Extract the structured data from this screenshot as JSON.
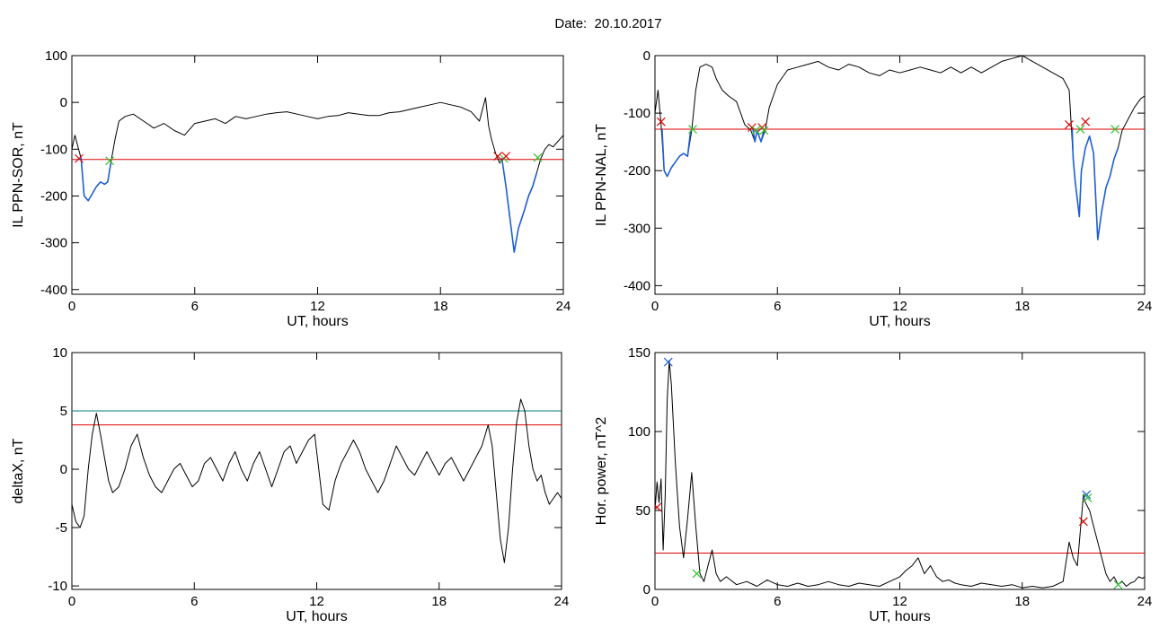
{
  "page": {
    "title": "Date:  20.10.2017"
  },
  "chart_data": [
    {
      "id": "ppn-sor",
      "type": "line",
      "title": "",
      "xlabel": "UT, hours",
      "ylabel": "IL PPN-SOR, nT",
      "xlim": [
        0,
        24
      ],
      "ylim": [
        -410,
        100
      ],
      "xticks": [
        0,
        6,
        12,
        18,
        24
      ],
      "yticks": [
        100,
        0,
        -100,
        -200,
        -300,
        -400
      ],
      "grid": false,
      "colors": {
        "line": "#000000",
        "highlight": "#1f5fd6",
        "threshold": "#e00000",
        "cross_red": "#e00000",
        "cross_green": "#2fc42f"
      },
      "threshold": -122,
      "series": [
        {
          "role": "main",
          "x": [
            0,
            0.15,
            0.3,
            0.45,
            0.6,
            0.8,
            1.0,
            1.2,
            1.4,
            1.6,
            1.75,
            1.9,
            2.1,
            2.3,
            2.6,
            3.0,
            3.5,
            4.0,
            4.5,
            5.0,
            5.5,
            6.0,
            6.5,
            7.0,
            7.5,
            8.0,
            8.5,
            9.0,
            9.5,
            10.0,
            10.5,
            11.0,
            11.5,
            12.0,
            12.5,
            13.0,
            13.5,
            14.0,
            14.5,
            15.0,
            15.5,
            16.0,
            16.5,
            17.0,
            17.5,
            18.0,
            18.5,
            19.0,
            19.5,
            19.9,
            20.2,
            20.35,
            20.5,
            20.7,
            20.9,
            21.0,
            21.2,
            21.4,
            21.6,
            21.8,
            21.95,
            22.1,
            22.3,
            22.5,
            22.7,
            22.9,
            23.1,
            23.3,
            23.5,
            23.7,
            23.9,
            24.0
          ],
          "y": [
            -100,
            -70,
            -95,
            -120,
            -200,
            -210,
            -195,
            -180,
            -170,
            -175,
            -170,
            -130,
            -80,
            -40,
            -30,
            -25,
            -40,
            -55,
            -45,
            -60,
            -70,
            -45,
            -40,
            -35,
            -45,
            -30,
            -35,
            -30,
            -25,
            -22,
            -20,
            -25,
            -30,
            -35,
            -30,
            -28,
            -22,
            -25,
            -28,
            -28,
            -22,
            -20,
            -15,
            -10,
            -5,
            0,
            -5,
            -10,
            -20,
            -40,
            10,
            -50,
            -80,
            -110,
            -130,
            -120,
            -180,
            -250,
            -320,
            -270,
            -250,
            -230,
            -200,
            -180,
            -150,
            -120,
            -100,
            -90,
            -95,
            -85,
            -75,
            -70
          ]
        },
        {
          "role": "below-threshold",
          "x": [
            0.3,
            0.45,
            0.6,
            0.8,
            1.0,
            1.2,
            1.4,
            1.6,
            1.75,
            1.9
          ],
          "y": [
            -122,
            -120,
            -200,
            -210,
            -195,
            -180,
            -170,
            -175,
            -170,
            -130
          ]
        },
        {
          "role": "below-threshold",
          "x": [
            20.95,
            21.0,
            21.2,
            21.4,
            21.6,
            21.8,
            21.95,
            22.1,
            22.3,
            22.5,
            22.7
          ],
          "y": [
            -125,
            -120,
            -180,
            -250,
            -320,
            -270,
            -250,
            -230,
            -200,
            -180,
            -150
          ]
        }
      ],
      "markers": [
        {
          "x": 0.35,
          "y": -120,
          "color": "red"
        },
        {
          "x": 1.85,
          "y": -125,
          "color": "green"
        },
        {
          "x": 20.8,
          "y": -115,
          "color": "red"
        },
        {
          "x": 21.1,
          "y": -120,
          "color": "green"
        },
        {
          "x": 21.2,
          "y": -115,
          "color": "red"
        },
        {
          "x": 22.75,
          "y": -118,
          "color": "green"
        }
      ]
    },
    {
      "id": "ppn-nal",
      "type": "line",
      "title": "",
      "xlabel": "UT, hours",
      "ylabel": "IL PPN-NAL, nT",
      "xlim": [
        0,
        24
      ],
      "ylim": [
        -415,
        0
      ],
      "xticks": [
        0,
        6,
        12,
        18,
        24
      ],
      "yticks": [
        0,
        -100,
        -200,
        -300,
        -400
      ],
      "grid": false,
      "colors": {
        "line": "#000000",
        "highlight": "#1f5fd6",
        "threshold": "#e00000",
        "cross_red": "#e00000",
        "cross_green": "#2fc42f"
      },
      "threshold": -128,
      "series": [
        {
          "role": "main",
          "x": [
            0,
            0.15,
            0.3,
            0.45,
            0.6,
            0.8,
            1.0,
            1.2,
            1.4,
            1.6,
            1.8,
            2.0,
            2.2,
            2.5,
            2.8,
            3.0,
            3.3,
            3.6,
            4.0,
            4.4,
            4.7,
            4.9,
            5.0,
            5.2,
            5.4,
            5.6,
            6.0,
            6.5,
            7.0,
            7.5,
            8.0,
            8.5,
            9.0,
            9.5,
            10.0,
            10.5,
            11.0,
            11.5,
            12.0,
            12.5,
            13.0,
            13.5,
            14.0,
            14.5,
            15.0,
            15.5,
            16.0,
            16.5,
            17.0,
            17.5,
            18.0,
            18.5,
            19.0,
            19.5,
            20.0,
            20.3,
            20.5,
            20.6,
            20.8,
            20.9,
            21.1,
            21.3,
            21.5,
            21.7,
            21.9,
            22.1,
            22.3,
            22.5,
            22.7,
            22.9,
            23.2,
            23.5,
            23.8,
            24.0
          ],
          "y": [
            -100,
            -60,
            -120,
            -200,
            -210,
            -195,
            -185,
            -175,
            -170,
            -175,
            -130,
            -60,
            -20,
            -15,
            -20,
            -40,
            -60,
            -70,
            -80,
            -120,
            -130,
            -150,
            -130,
            -150,
            -130,
            -90,
            -50,
            -25,
            -20,
            -15,
            -10,
            -20,
            -25,
            -15,
            -20,
            -30,
            -35,
            -25,
            -30,
            -25,
            -20,
            -25,
            -30,
            -20,
            -30,
            -20,
            -30,
            -20,
            -10,
            -5,
            0,
            -10,
            -20,
            -30,
            -40,
            -60,
            -180,
            -220,
            -280,
            -200,
            -160,
            -140,
            -170,
            -320,
            -270,
            -230,
            -210,
            -180,
            -160,
            -130,
            -110,
            -90,
            -75,
            -70
          ]
        },
        {
          "role": "below-threshold",
          "x": [
            0.35,
            0.45,
            0.6,
            0.8,
            1.0,
            1.2,
            1.4,
            1.6,
            1.75
          ],
          "y": [
            -128,
            -200,
            -210,
            -195,
            -185,
            -175,
            -170,
            -175,
            -130
          ]
        },
        {
          "role": "below-threshold",
          "x": [
            4.8,
            4.9,
            5.0,
            5.2,
            5.35
          ],
          "y": [
            -128,
            -150,
            -130,
            -150,
            -128
          ]
        },
        {
          "role": "below-threshold",
          "x": [
            20.45,
            20.5,
            20.6,
            20.8,
            20.9,
            21.1,
            21.3,
            21.5,
            21.7,
            21.9,
            22.1,
            22.3,
            22.5,
            22.7
          ],
          "y": [
            -128,
            -180,
            -220,
            -280,
            -200,
            -160,
            -140,
            -170,
            -320,
            -270,
            -230,
            -210,
            -180,
            -160
          ]
        }
      ],
      "markers": [
        {
          "x": 0.3,
          "y": -115,
          "color": "red"
        },
        {
          "x": 1.85,
          "y": -128,
          "color": "green"
        },
        {
          "x": 4.75,
          "y": -125,
          "color": "red"
        },
        {
          "x": 4.95,
          "y": -130,
          "color": "green"
        },
        {
          "x": 5.25,
          "y": -125,
          "color": "red"
        },
        {
          "x": 5.35,
          "y": -130,
          "color": "green"
        },
        {
          "x": 20.3,
          "y": -120,
          "color": "red"
        },
        {
          "x": 20.85,
          "y": -128,
          "color": "green"
        },
        {
          "x": 21.1,
          "y": -115,
          "color": "red"
        },
        {
          "x": 22.55,
          "y": -128,
          "color": "green"
        }
      ]
    },
    {
      "id": "deltax",
      "type": "line",
      "title": "",
      "xlabel": "UT, hours",
      "ylabel": "deltaX, nT",
      "xlim": [
        0,
        24
      ],
      "ylim": [
        -10.3,
        10
      ],
      "xticks": [
        0,
        6,
        12,
        18,
        24
      ],
      "yticks": [
        10,
        5,
        0,
        -5,
        -10
      ],
      "grid": false,
      "colors": {
        "line": "#000000",
        "threshold": "#e00000",
        "threshold2": "#008080"
      },
      "threshold": 3.8,
      "threshold2": 5.0,
      "series": [
        {
          "role": "main",
          "x": [
            0,
            0.2,
            0.4,
            0.6,
            0.8,
            1.0,
            1.2,
            1.4,
            1.6,
            1.8,
            2.0,
            2.3,
            2.6,
            2.9,
            3.2,
            3.5,
            3.8,
            4.1,
            4.4,
            4.7,
            5.0,
            5.3,
            5.6,
            5.9,
            6.2,
            6.5,
            6.8,
            7.1,
            7.4,
            7.7,
            8.0,
            8.3,
            8.6,
            8.9,
            9.2,
            9.5,
            9.8,
            10.1,
            10.4,
            10.7,
            11.0,
            11.3,
            11.6,
            11.9,
            12.1,
            12.3,
            12.6,
            12.9,
            13.2,
            13.5,
            13.8,
            14.1,
            14.4,
            14.7,
            15.0,
            15.3,
            15.6,
            15.9,
            16.2,
            16.5,
            16.8,
            17.1,
            17.4,
            17.7,
            18.0,
            18.3,
            18.6,
            18.9,
            19.2,
            19.5,
            19.8,
            20.1,
            20.4,
            20.6,
            20.8,
            21.0,
            21.2,
            21.4,
            21.6,
            21.8,
            22.0,
            22.2,
            22.4,
            22.6,
            22.8,
            23.0,
            23.2,
            23.4,
            23.6,
            23.8,
            24.0
          ],
          "y": [
            -3,
            -4.5,
            -5,
            -4,
            0,
            3,
            4.8,
            3,
            1,
            -1,
            -2,
            -1.5,
            0,
            2,
            3,
            1,
            -0.5,
            -1.5,
            -2,
            -1,
            0,
            0.5,
            -0.5,
            -1.5,
            -1,
            0.5,
            1,
            0,
            -1,
            0.5,
            1.5,
            0,
            -1,
            0.5,
            1.5,
            0,
            -1.5,
            0,
            1.5,
            2,
            0.5,
            1.5,
            2.5,
            3,
            0,
            -3,
            -3.5,
            -1,
            0.5,
            1.5,
            2.5,
            1.5,
            0,
            -1,
            -2,
            -1,
            0.5,
            2,
            1,
            0,
            -0.5,
            0.5,
            1.5,
            0.5,
            -0.5,
            0.5,
            1,
            0,
            -1,
            0,
            1,
            2,
            3.8,
            2,
            -2,
            -6,
            -8,
            -5,
            0,
            4,
            6,
            5,
            2,
            0,
            -1,
            -0.5,
            -2,
            -3,
            -2.5,
            -2,
            -2.5
          ]
        }
      ],
      "markers": []
    },
    {
      "id": "hor-power",
      "type": "line",
      "title": "",
      "xlabel": "UT, hours",
      "ylabel": "Hor. power, nT^2",
      "xlim": [
        0,
        24
      ],
      "ylim": [
        0,
        150
      ],
      "xticks": [
        0,
        6,
        12,
        18,
        24
      ],
      "yticks": [
        150,
        100,
        50,
        0
      ],
      "grid": false,
      "colors": {
        "line": "#000000",
        "threshold": "#e00000",
        "cross_red": "#e00000",
        "cross_green": "#2fc42f",
        "cross_blue": "#1f5fd6"
      },
      "threshold": 23,
      "series": [
        {
          "role": "main",
          "x": [
            0,
            0.1,
            0.2,
            0.3,
            0.4,
            0.5,
            0.6,
            0.7,
            0.8,
            1.0,
            1.2,
            1.4,
            1.6,
            1.8,
            2.0,
            2.2,
            2.4,
            2.6,
            2.8,
            3.0,
            3.2,
            3.5,
            4.0,
            4.5,
            5.0,
            5.5,
            6.0,
            6.5,
            7.0,
            7.5,
            8.0,
            8.5,
            9.0,
            9.5,
            10.0,
            10.5,
            11.0,
            11.5,
            12.0,
            12.3,
            12.6,
            12.9,
            13.2,
            13.5,
            13.8,
            14.1,
            14.4,
            14.7,
            15.0,
            15.5,
            16.0,
            16.5,
            17.0,
            17.5,
            18.0,
            18.5,
            19.0,
            19.5,
            20.0,
            20.3,
            20.5,
            20.7,
            20.9,
            21.0,
            21.1,
            21.3,
            21.5,
            21.7,
            21.9,
            22.1,
            22.3,
            22.5,
            22.7,
            22.9,
            23.1,
            23.3,
            23.5,
            23.7,
            23.9,
            24.0
          ],
          "y": [
            50,
            68,
            55,
            70,
            25,
            60,
            120,
            145,
            130,
            80,
            40,
            20,
            45,
            74,
            40,
            10,
            5,
            15,
            25,
            10,
            5,
            8,
            3,
            5,
            2,
            6,
            3,
            2,
            4,
            2,
            3,
            5,
            3,
            2,
            4,
            3,
            2,
            5,
            8,
            12,
            15,
            20,
            10,
            15,
            8,
            5,
            6,
            4,
            3,
            2,
            4,
            3,
            2,
            3,
            1,
            2,
            1,
            2,
            5,
            30,
            20,
            15,
            45,
            60,
            55,
            50,
            40,
            30,
            20,
            10,
            5,
            8,
            3,
            5,
            2,
            4,
            5,
            8,
            7,
            8
          ]
        }
      ],
      "markers": [
        {
          "x": 0.1,
          "y": 52,
          "color": "red"
        },
        {
          "x": 0.65,
          "y": 144,
          "color": "blue"
        },
        {
          "x": 2.05,
          "y": 10,
          "color": "green"
        },
        {
          "x": 21.0,
          "y": 43,
          "color": "red"
        },
        {
          "x": 21.15,
          "y": 60,
          "color": "blue"
        },
        {
          "x": 21.2,
          "y": 58,
          "color": "green"
        },
        {
          "x": 22.7,
          "y": 3,
          "color": "green"
        }
      ]
    }
  ]
}
